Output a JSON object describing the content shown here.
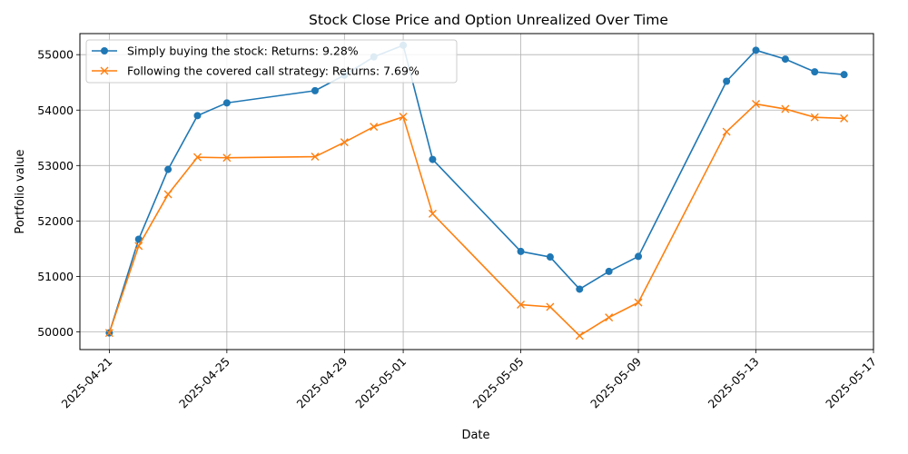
{
  "chart_data": {
    "type": "line",
    "title": "Stock Close Price and Option Unrealized Over Time",
    "xlabel": "Date",
    "ylabel": "Portfolio value",
    "x_range": [
      "2025-04-20",
      "2025-05-17"
    ],
    "ylim": [
      49680,
      55380
    ],
    "x_ticks": [
      "2025-04-21",
      "2025-04-25",
      "2025-04-29",
      "2025-05-01",
      "2025-05-05",
      "2025-05-09",
      "2025-05-13",
      "2025-05-17"
    ],
    "y_ticks": [
      50000,
      51000,
      52000,
      53000,
      54000,
      55000
    ],
    "grid": true,
    "legend_position": "top-left",
    "x": [
      "2025-04-21",
      "2025-04-22",
      "2025-04-23",
      "2025-04-24",
      "2025-04-25",
      "2025-04-28",
      "2025-04-29",
      "2025-04-30",
      "2025-05-01",
      "2025-05-02",
      "2025-05-05",
      "2025-05-06",
      "2025-05-07",
      "2025-05-08",
      "2025-05-09",
      "2025-05-12",
      "2025-05-13",
      "2025-05-14",
      "2025-05-15",
      "2025-05-16"
    ],
    "series": [
      {
        "name": "Simply buying the stock: Returns: 9.28%",
        "color": "#1f77b4",
        "marker": "circle",
        "values": [
          49980,
          51670,
          52930,
          53900,
          54130,
          54350,
          54630,
          54960,
          55170,
          53110,
          51450,
          51350,
          50770,
          51090,
          51360,
          54520,
          55080,
          54920,
          54690,
          54640
        ]
      },
      {
        "name": "Following the covered call strategy: Returns: 7.69%",
        "color": "#ff7f0e",
        "marker": "x",
        "values": [
          49980,
          51550,
          52480,
          53150,
          53140,
          53160,
          53420,
          53700,
          53880,
          52130,
          50490,
          50450,
          49930,
          50260,
          50530,
          53610,
          54110,
          54020,
          53870,
          53850
        ]
      }
    ]
  }
}
